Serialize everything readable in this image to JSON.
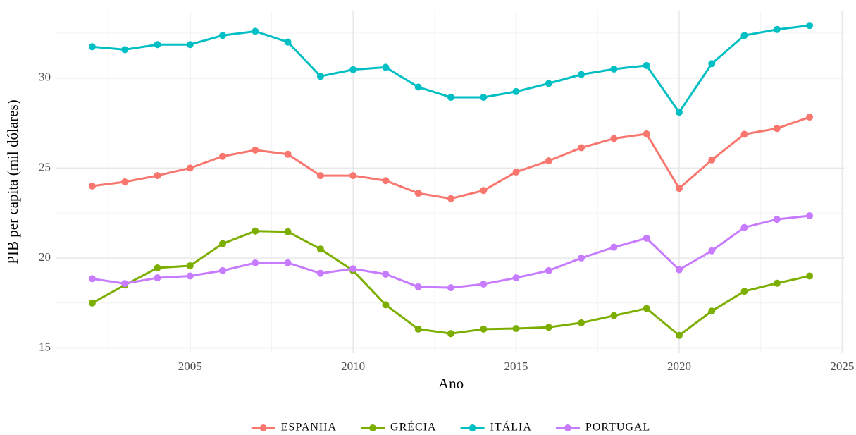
{
  "chart_data": {
    "type": "line",
    "x_label": "Ano",
    "y_label": "PIB per capita (mil dólares)",
    "x": [
      2002,
      2003,
      2004,
      2005,
      2006,
      2007,
      2008,
      2009,
      2010,
      2011,
      2012,
      2013,
      2014,
      2015,
      2016,
      2017,
      2018,
      2019,
      2020,
      2021,
      2022,
      2023,
      2024
    ],
    "series": [
      {
        "name": "ESPANHA",
        "color": "#F8766D",
        "values": [
          24.0,
          24.23,
          24.58,
          25.0,
          25.65,
          26.0,
          25.77,
          24.58,
          24.58,
          24.3,
          23.6,
          23.3,
          23.75,
          24.78,
          25.4,
          26.13,
          26.64,
          26.9,
          23.87,
          25.45,
          26.88,
          27.2,
          27.83
        ]
      },
      {
        "name": "GRÉCIA",
        "color": "#7CAE00",
        "values": [
          17.5,
          18.5,
          19.45,
          19.57,
          20.8,
          21.5,
          21.46,
          20.5,
          19.3,
          17.4,
          16.05,
          15.8,
          16.05,
          16.08,
          16.15,
          16.4,
          16.8,
          17.2,
          15.7,
          17.05,
          18.15,
          18.6,
          19.0
        ]
      },
      {
        "name": "ITÁLIA",
        "color": "#00BFC4",
        "values": [
          31.74,
          31.58,
          31.86,
          31.86,
          32.37,
          32.6,
          32.0,
          30.1,
          30.47,
          30.6,
          29.5,
          28.93,
          28.93,
          29.25,
          29.7,
          30.2,
          30.5,
          30.7,
          28.1,
          30.8,
          32.37,
          32.7,
          32.92
        ]
      },
      {
        "name": "PORTUGAL",
        "color": "#C77CFF",
        "values": [
          18.85,
          18.58,
          18.9,
          19.0,
          19.3,
          19.73,
          19.73,
          19.15,
          19.4,
          19.1,
          18.4,
          18.35,
          18.55,
          18.9,
          19.3,
          20.0,
          20.6,
          21.1,
          19.35,
          20.4,
          21.7,
          22.15,
          22.35
        ]
      }
    ],
    "xlim": [
      2000.9,
      2025.1
    ],
    "xticks": [
      2005,
      2010,
      2015,
      2020,
      2025
    ],
    "xminor_ticks": [
      2002.5,
      2007.5,
      2012.5,
      2017.5,
      2022.5
    ],
    "ylim": [
      14.75,
      33.75
    ],
    "yticks": [
      15,
      20,
      25,
      30
    ],
    "yminor_ticks": [
      17.5,
      22.5,
      27.5,
      32.5
    ],
    "grid": true,
    "legend": "bottom"
  }
}
